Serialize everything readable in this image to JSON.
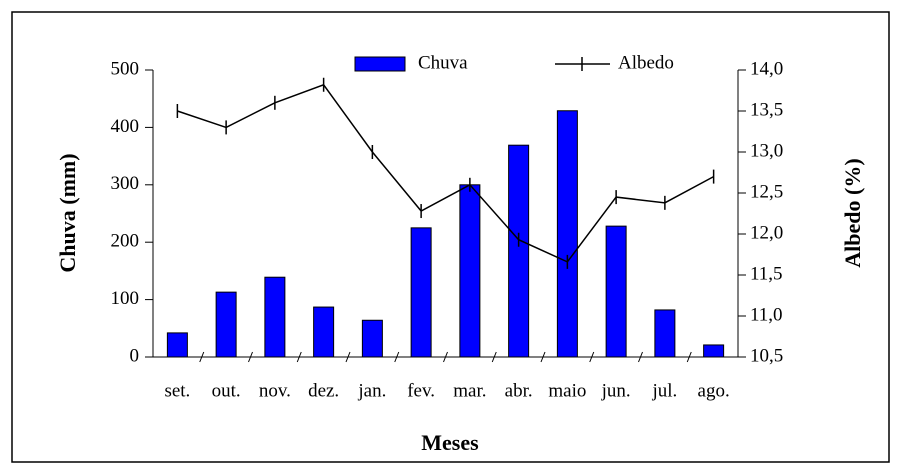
{
  "chart_data": {
    "type": "bar-line",
    "x_label": "Meses",
    "y_label": "Chuva (mm)",
    "y2_label": "Albedo (%)",
    "categories": [
      "set.",
      "out.",
      "nov.",
      "dez.",
      "jan.",
      "fev.",
      "mar.",
      "abr.",
      "maio",
      "jun.",
      "jul.",
      "ago."
    ],
    "series": [
      {
        "name": "Chuva",
        "type": "bar",
        "color": "#0000ff",
        "values": [
          42,
          113,
          139,
          87,
          64,
          225,
          300,
          369,
          429,
          228,
          82,
          21
        ]
      },
      {
        "name": "Albedo",
        "type": "line",
        "axis": "y2",
        "color": "#000000",
        "values": [
          13.5,
          13.3,
          13.6,
          13.82,
          13.0,
          12.28,
          12.6,
          11.93,
          11.66,
          12.45,
          12.38,
          12.7
        ]
      }
    ],
    "ylim": [
      0,
      500
    ],
    "yticks": [
      0,
      100,
      200,
      300,
      400,
      500
    ],
    "y2lim": [
      10.5,
      14.0
    ],
    "y2ticks": [
      {
        "value": 10.5,
        "label": "10,5"
      },
      {
        "value": 11.0,
        "label": "11,0"
      },
      {
        "value": 11.5,
        "label": "11,5"
      },
      {
        "value": 12.0,
        "label": "12,0"
      },
      {
        "value": 12.5,
        "label": "12,5"
      },
      {
        "value": 13.0,
        "label": "13,0"
      },
      {
        "value": 13.5,
        "label": "13,5"
      },
      {
        "value": 14.0,
        "label": "14,0"
      }
    ],
    "grid": false
  }
}
